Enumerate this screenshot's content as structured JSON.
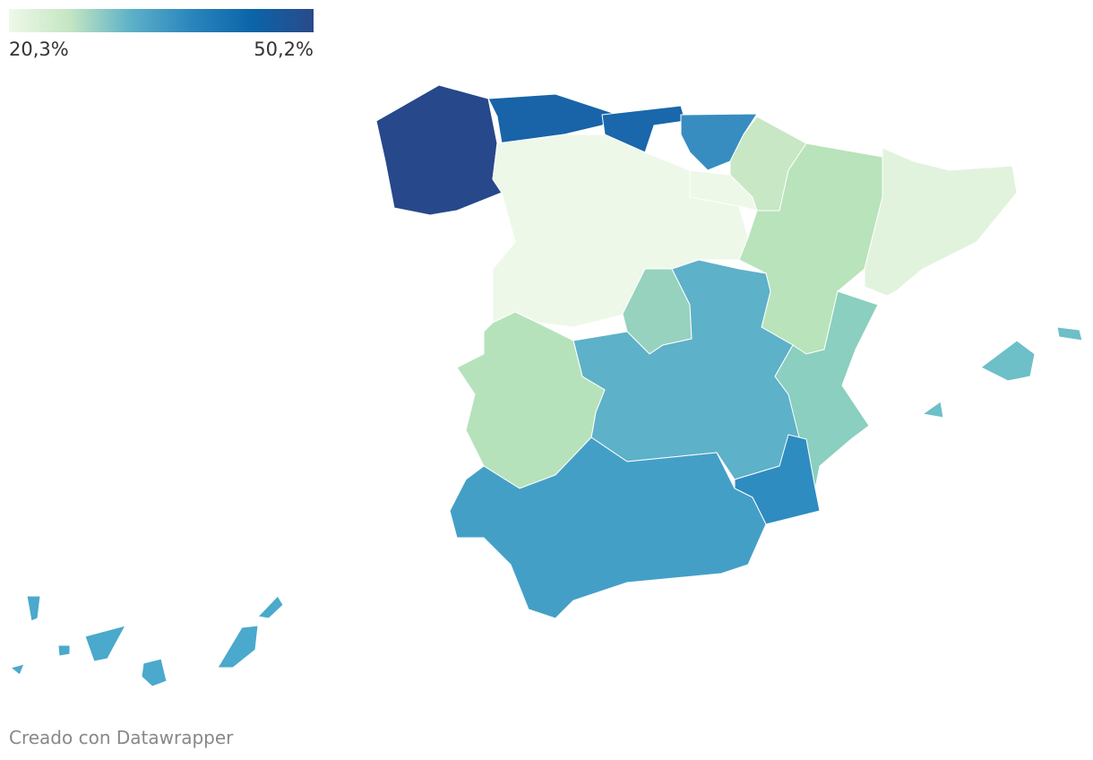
{
  "legend": {
    "min": {
      "value": 20.3,
      "label": "20,3%"
    },
    "max": {
      "value": 50.2,
      "label": "50,2%"
    },
    "colors": [
      "#eef8e9",
      "#c4e6c2",
      "#5db1c8",
      "#2a85bd",
      "#0b64a8",
      "#2a4a8a"
    ]
  },
  "regions": [
    {
      "color": "#27488a"
    },
    {
      "color": "#1963a8"
    },
    {
      "color": "#1a67ab"
    },
    {
      "color": "#378dc0"
    },
    {
      "color": "#c7e7c5"
    },
    {
      "color": "#eef8e9"
    },
    {
      "color": "#eef8e9"
    },
    {
      "color": "#b9e3bb"
    },
    {
      "color": "#e1f3dc"
    },
    {
      "color": "#96d2be"
    },
    {
      "color": "#5db1c8"
    },
    {
      "color": "#b6e2bb"
    },
    {
      "color": "#8acfbf"
    },
    {
      "color": "#2e8cc0"
    },
    {
      "color": "#449fc7"
    },
    {
      "color": "#6dbfc8"
    },
    {
      "color": "#4aa9cc"
    }
  ],
  "footer": "Creado con Datawrapper"
}
